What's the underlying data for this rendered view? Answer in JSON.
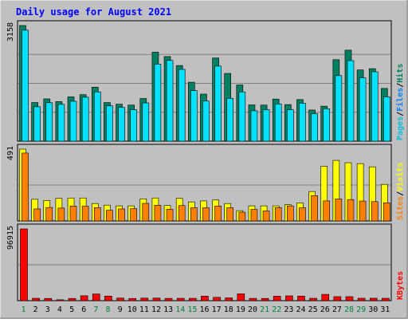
{
  "chart_data": {
    "type": "bar",
    "title": "Daily usage for August 2021",
    "categories": [
      "1",
      "2",
      "3",
      "4",
      "5",
      "6",
      "7",
      "8",
      "9",
      "10",
      "11",
      "12",
      "13",
      "14",
      "15",
      "16",
      "17",
      "18",
      "19",
      "20",
      "21",
      "22",
      "23",
      "24",
      "25",
      "26",
      "27",
      "28",
      "29",
      "30",
      "31"
    ],
    "weekend_days": [
      "1",
      "7",
      "8",
      "14",
      "15",
      "21",
      "22",
      "28",
      "29"
    ],
    "panels": [
      {
        "id": "hits_files",
        "max_label": "3158",
        "ylim": [
          0,
          3158
        ],
        "series": [
          {
            "name": "Hits",
            "color": "#008060",
            "values": [
              3158,
              1055,
              1155,
              1080,
              1210,
              1270,
              1475,
              1055,
              1010,
              985,
              1165,
              2430,
              2310,
              2065,
              1610,
              1285,
              2270,
              1850,
              1535,
              990,
              985,
              1150,
              1000,
              1135,
              850,
              955,
              2225,
              2485,
              1945,
              1980,
              1440
            ]
          },
          {
            "name": "Files",
            "color": "#00e0ff",
            "values": [
              3030,
              940,
              1050,
              1005,
              1090,
              1200,
              1345,
              965,
              920,
              860,
              1045,
              2105,
              2205,
              1960,
              1380,
              1095,
              2050,
              1170,
              1345,
              830,
              860,
              1015,
              860,
              1035,
              750,
              885,
              1790,
              2200,
              1730,
              1895,
              1210
            ]
          },
          {
            "name": "Pages",
            "color": "#00c0e0",
            "values": [
              0,
              0,
              0,
              0,
              0,
              0,
              0,
              0,
              0,
              0,
              0,
              0,
              0,
              0,
              0,
              0,
              0,
              0,
              0,
              0,
              0,
              0,
              0,
              0,
              0,
              0,
              0,
              0,
              0,
              0,
              0
            ]
          }
        ],
        "legend": [
          "Pages",
          "Files",
          "Hits"
        ]
      },
      {
        "id": "sites_visits",
        "max_label": "491",
        "ylim": [
          0,
          491
        ],
        "series": [
          {
            "name": "Visits",
            "color": "#ffff00",
            "values": [
              491,
              148,
              140,
              154,
              157,
              157,
              119,
              108,
              103,
              103,
              151,
              157,
              105,
              154,
              130,
              137,
              143,
              119,
              70,
              103,
              103,
              103,
              111,
              123,
              201,
              374,
              414,
              398,
              392,
              370,
              250
            ]
          },
          {
            "name": "Sites",
            "color": "#ff8000",
            "values": [
              464,
              82,
              92,
              88,
              102,
              101,
              91,
              73,
              82,
              84,
              120,
              107,
              80,
              105,
              90,
              90,
              102,
              90,
              60,
              79,
              68,
              91,
              103,
              90,
              173,
              137,
              151,
              146,
              136,
              132,
              124
            ]
          }
        ],
        "legend": [
          "Sites",
          "Visits"
        ]
      },
      {
        "id": "kbytes",
        "max_label": "96915",
        "ylim": [
          0,
          96915
        ],
        "series": [
          {
            "name": "KBytes",
            "color": "#ff0000",
            "values": [
              96915,
              3200,
              3000,
              1200,
              3000,
              6600,
              9000,
              6200,
              3500,
              3000,
              3500,
              3500,
              3100,
              3200,
              3200,
              6100,
              4500,
              3800,
              9200,
              3100,
              3000,
              6000,
              6500,
              6200,
              3200,
              8500,
              5400,
              5400,
              3300,
              3300,
              3200
            ]
          }
        ],
        "legend": [
          "KBytes"
        ]
      }
    ],
    "grid": true
  },
  "colors": {
    "title": "#0000ff",
    "background": "#c0c0c0",
    "frame_light": "#ffffff",
    "frame_dark": "#808080",
    "weekend_label": "#008040",
    "weekday_label": "#000000",
    "separator": "#000000"
  }
}
